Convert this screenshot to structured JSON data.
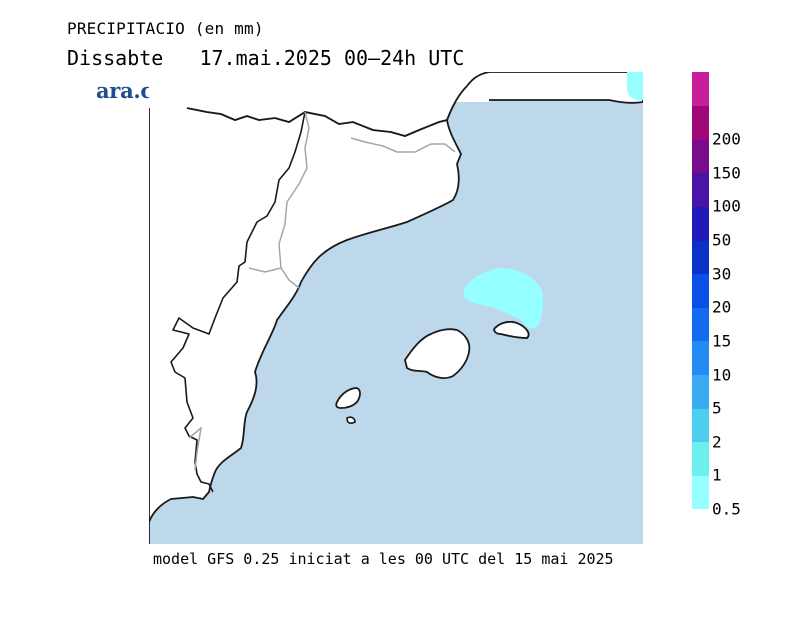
{
  "header": {
    "title": "PRECIPITACIO (en mm)",
    "subtitle": "Dissabte   17.mai.2025 00–24h UTC"
  },
  "brand": {
    "logo_text": "ara.cat",
    "color": "#1f4f8b"
  },
  "map": {
    "sea_color": "#bcd8ea",
    "land_color": "#ffffff",
    "coast_color": "#1a1a1a",
    "border_color": "#a6a6a6",
    "precip_areas": [
      {
        "name": "north-east-menorca-area",
        "level_mm": "1"
      },
      {
        "name": "top-right-corner-area",
        "level_mm": "1"
      }
    ]
  },
  "legend": {
    "steps": [
      {
        "label": "0.5",
        "color": "#96ffff"
      },
      {
        "label": "1",
        "color": "#6cefef"
      },
      {
        "label": "2",
        "color": "#4ccfef"
      },
      {
        "label": "5",
        "color": "#3aabf2"
      },
      {
        "label": "10",
        "color": "#248bf4"
      },
      {
        "label": "15",
        "color": "#136cf0"
      },
      {
        "label": "20",
        "color": "#0a4fe8"
      },
      {
        "label": "30",
        "color": "#0a32c8"
      },
      {
        "label": "50",
        "color": "#1f1ab8"
      },
      {
        "label": "100",
        "color": "#4a14a6"
      },
      {
        "label": "150",
        "color": "#7a0b8c"
      },
      {
        "label": "200",
        "color": "#a0087a"
      },
      {
        "label": "",
        "color": "#c81e9c"
      }
    ]
  },
  "footer": {
    "text": "model GFS 0.25 iniciat a les 00 UTC del 15 mai 2025"
  }
}
